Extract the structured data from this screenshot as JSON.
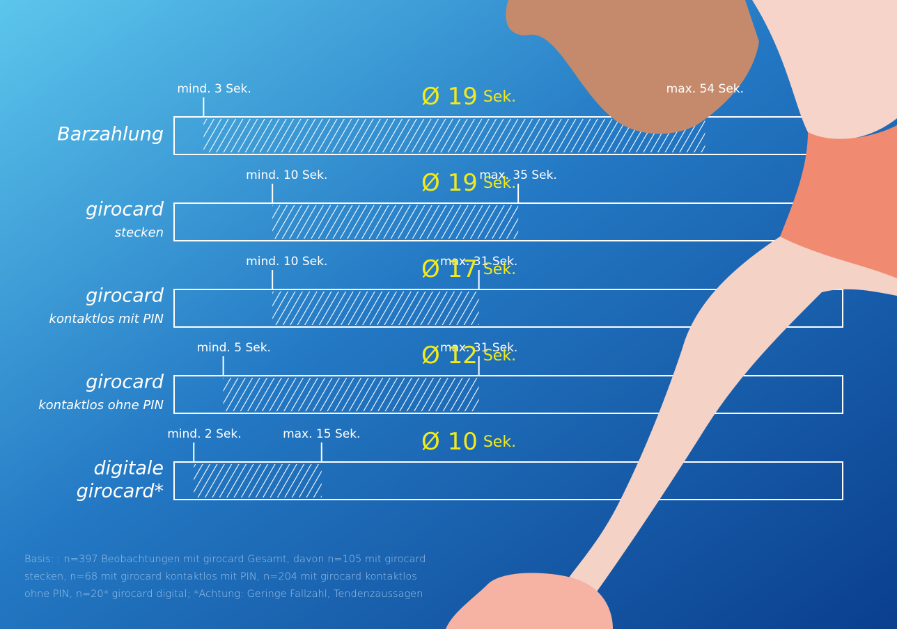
{
  "chart_data": {
    "type": "range",
    "categories": [
      "Barzahlung",
      "girocard",
      "girocard",
      "girocard",
      "digitale"
    ],
    "subcategories": [
      null,
      "stecken",
      "kontaktlos mit PIN",
      "kontaktlos ohne PIN",
      "girocard*"
    ],
    "min": {
      "values": [
        3,
        10,
        10,
        5,
        2
      ],
      "value_labels": [
        "mind. 3 Sek.",
        "mind. 10 Sek.",
        "mind. 10 Sek.",
        "mind. 5 Sek.",
        "mind. 2 Sek."
      ]
    },
    "max": {
      "values": [
        54,
        35,
        31,
        31,
        15
      ],
      "value_labels": [
        "max. 54 Sek.",
        "max. 35 Sek.",
        "max. 31 Sek.",
        "max. 31 Sek.",
        "max. 15 Sek."
      ]
    },
    "avg": {
      "values": [
        19,
        19,
        17,
        12,
        10
      ],
      "value_labels": [
        "Ø 19",
        "Ø 19",
        "Ø 17",
        "Ø 12",
        "Ø 10"
      ],
      "unit_labels": [
        "Sek.",
        "Sek.",
        "Sek.",
        "Sek.",
        "Sek."
      ]
    },
    "xlim": [
      0,
      68
    ],
    "color": "#ffffff",
    "footnote": [
      "Basis: : n=397 Beobachtungen mit  girocard Gesamt, davon n=105 mit girocard",
      "stecken, n=68 mit girocard kontaktlos mit PIN, n=204 mit girocard kontaktlos",
      "ohne PIN, n=20* girocard digital; *Achtung: Geringe Fallzahl, Tendenzaussagen"
    ]
  }
}
